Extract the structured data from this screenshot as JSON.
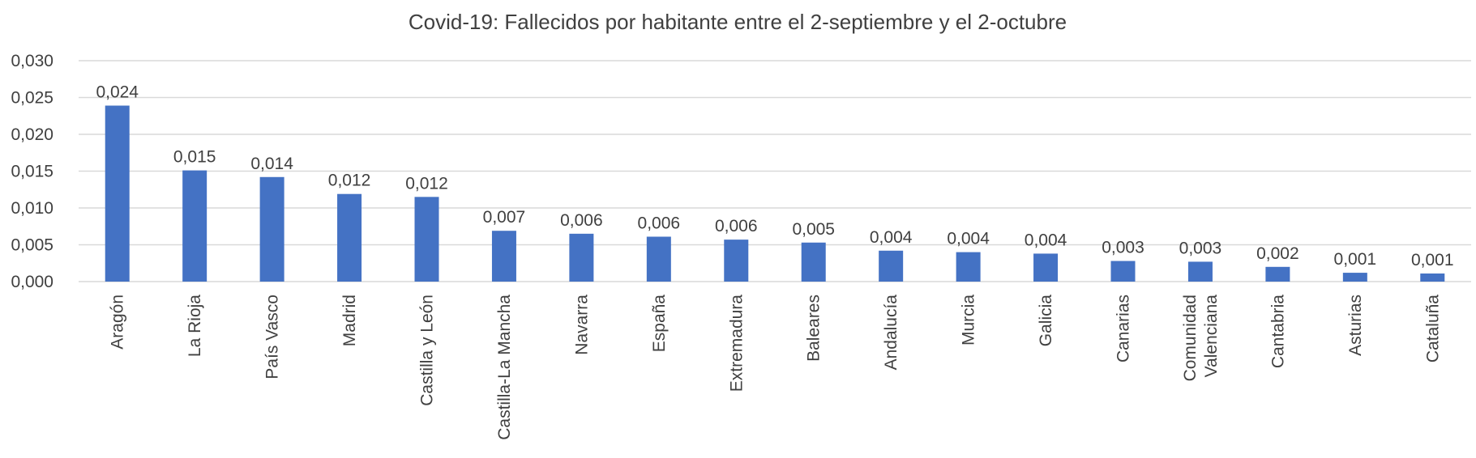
{
  "chart_data": {
    "type": "bar",
    "title": "Covid-19: Fallecidos por habitante entre el 2-septiembre y el 2-octubre",
    "xlabel": "",
    "ylabel": "",
    "ylim": [
      0,
      0.03
    ],
    "y_ticks": [
      "0,000",
      "0,005",
      "0,010",
      "0,015",
      "0,020",
      "0,025",
      "0,030"
    ],
    "grid": true,
    "legend": "none",
    "bar_color": "#4472c4",
    "categories": [
      [
        "Aragón"
      ],
      [
        "La Rioja"
      ],
      [
        "País Vasco"
      ],
      [
        "Madrid"
      ],
      [
        "Castilla y León"
      ],
      [
        "Castilla-La Mancha"
      ],
      [
        "Navarra"
      ],
      [
        "España"
      ],
      [
        "Extremadura"
      ],
      [
        "Baleares"
      ],
      [
        "Andalucía"
      ],
      [
        "Murcia"
      ],
      [
        "Galicia"
      ],
      [
        "Canarias"
      ],
      [
        "Comunidad",
        "Valenciana"
      ],
      [
        "Cantabria"
      ],
      [
        "Asturias"
      ],
      [
        "Cataluña"
      ]
    ],
    "values": [
      0.0239,
      0.0151,
      0.0142,
      0.0119,
      0.0115,
      0.0069,
      0.0065,
      0.0061,
      0.0057,
      0.0053,
      0.0042,
      0.004,
      0.0038,
      0.0028,
      0.0027,
      0.002,
      0.0012,
      0.0011
    ],
    "data_labels": [
      "0,024",
      "0,015",
      "0,014",
      "0,012",
      "0,012",
      "0,007",
      "0,006",
      "0,006",
      "0,006",
      "0,005",
      "0,004",
      "0,004",
      "0,004",
      "0,003",
      "0,003",
      "0,002",
      "0,001",
      "0,001"
    ]
  }
}
